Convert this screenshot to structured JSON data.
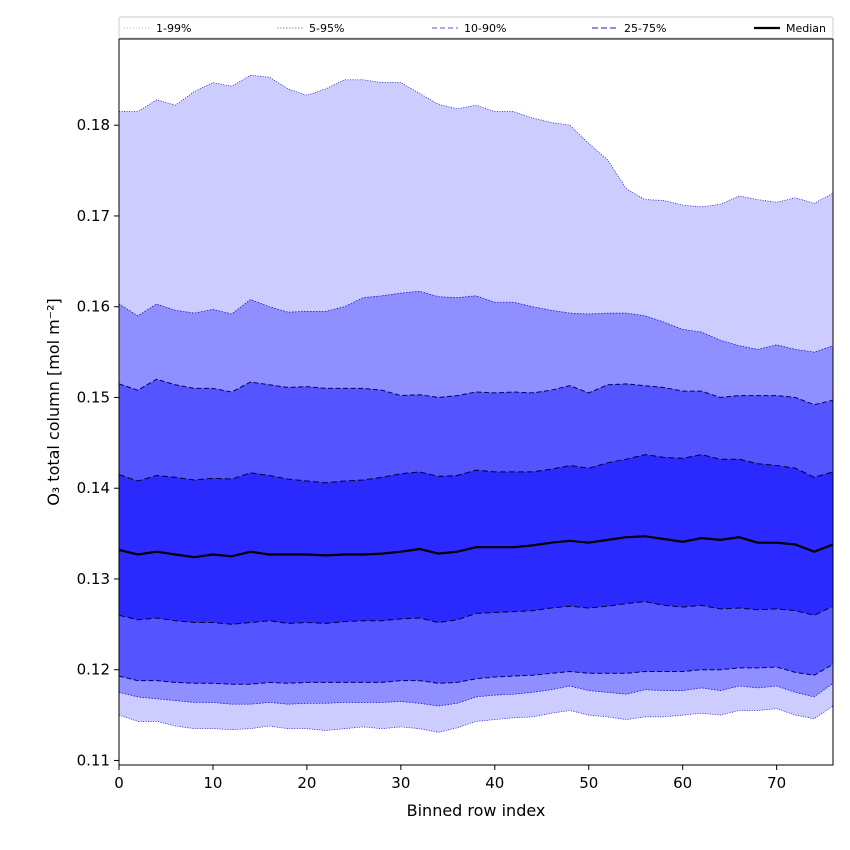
{
  "chart_data": {
    "type": "area",
    "xlabel": "Binned row index",
    "ylabel": "O₃ total column [mol m⁻²]",
    "xlim": [
      0,
      76
    ],
    "ylim": [
      0.1095,
      0.1895
    ],
    "xticks": [
      0,
      10,
      20,
      30,
      40,
      50,
      60,
      70
    ],
    "yticks": [
      0.11,
      0.12,
      0.13,
      0.14,
      0.15,
      0.16,
      0.17,
      0.18
    ],
    "legend_position": "top (outside, full width)",
    "x": [
      0,
      2,
      4,
      6,
      8,
      10,
      12,
      14,
      16,
      18,
      20,
      22,
      24,
      26,
      28,
      30,
      32,
      34,
      36,
      38,
      40,
      42,
      44,
      46,
      48,
      50,
      52,
      54,
      56,
      58,
      60,
      62,
      64,
      66,
      68,
      70,
      72,
      74,
      76
    ],
    "series": [
      {
        "name": "p1",
        "values": [
          0.115,
          0.1143,
          0.1143,
          0.1138,
          0.1135,
          0.1135,
          0.1134,
          0.1135,
          0.1138,
          0.1135,
          0.1135,
          0.1133,
          0.1135,
          0.1137,
          0.1135,
          0.1137,
          0.1135,
          0.1131,
          0.1136,
          0.1143,
          0.1145,
          0.1147,
          0.1148,
          0.1152,
          0.1155,
          0.115,
          0.1148,
          0.1145,
          0.1148,
          0.1148,
          0.115,
          0.1152,
          0.115,
          0.1155,
          0.1155,
          0.1157,
          0.115,
          0.1146,
          0.116
        ]
      },
      {
        "name": "p5",
        "values": [
          0.1175,
          0.117,
          0.1168,
          0.1166,
          0.1164,
          0.1164,
          0.1162,
          0.1162,
          0.1164,
          0.1162,
          0.1163,
          0.1163,
          0.1164,
          0.1164,
          0.1164,
          0.1165,
          0.1163,
          0.116,
          0.1163,
          0.117,
          0.1172,
          0.1173,
          0.1175,
          0.1178,
          0.1182,
          0.1177,
          0.1175,
          0.1173,
          0.1178,
          0.1177,
          0.1177,
          0.118,
          0.1177,
          0.1182,
          0.118,
          0.1182,
          0.1175,
          0.117,
          0.1185
        ]
      },
      {
        "name": "p10",
        "values": [
          0.1193,
          0.1188,
          0.1188,
          0.1186,
          0.1185,
          0.1185,
          0.1184,
          0.1184,
          0.1186,
          0.1185,
          0.1186,
          0.1186,
          0.1186,
          0.1186,
          0.1186,
          0.1188,
          0.1188,
          0.1185,
          0.1186,
          0.119,
          0.1192,
          0.1193,
          0.1194,
          0.1196,
          0.1198,
          0.1196,
          0.1196,
          0.1196,
          0.1198,
          0.1198,
          0.1198,
          0.12,
          0.12,
          0.1202,
          0.1202,
          0.1203,
          0.1197,
          0.1194,
          0.1206
        ]
      },
      {
        "name": "p25",
        "values": [
          0.126,
          0.1255,
          0.1257,
          0.1254,
          0.1252,
          0.1252,
          0.125,
          0.1252,
          0.1254,
          0.1251,
          0.1252,
          0.1251,
          0.1253,
          0.1254,
          0.1254,
          0.1256,
          0.1257,
          0.1252,
          0.1255,
          0.1262,
          0.1263,
          0.1264,
          0.1265,
          0.1268,
          0.127,
          0.1268,
          0.127,
          0.1273,
          0.1275,
          0.1271,
          0.1269,
          0.1271,
          0.1267,
          0.1268,
          0.1266,
          0.1267,
          0.1265,
          0.126,
          0.127
        ]
      },
      {
        "name": "p50",
        "values": [
          0.1332,
          0.1327,
          0.133,
          0.1327,
          0.1324,
          0.1327,
          0.1325,
          0.133,
          0.1327,
          0.1327,
          0.1327,
          0.1326,
          0.1327,
          0.1327,
          0.1328,
          0.133,
          0.1333,
          0.1328,
          0.133,
          0.1335,
          0.1335,
          0.1335,
          0.1337,
          0.134,
          0.1342,
          0.134,
          0.1343,
          0.1346,
          0.1347,
          0.1344,
          0.1341,
          0.1345,
          0.1343,
          0.1346,
          0.134,
          0.134,
          0.1338,
          0.133,
          0.1338
        ]
      },
      {
        "name": "p75",
        "values": [
          0.1415,
          0.1408,
          0.1414,
          0.1412,
          0.1409,
          0.1411,
          0.141,
          0.1417,
          0.1414,
          0.141,
          0.1408,
          0.1406,
          0.1408,
          0.1409,
          0.1412,
          0.1416,
          0.1418,
          0.1413,
          0.1414,
          0.142,
          0.1418,
          0.1418,
          0.1418,
          0.1421,
          0.1425,
          0.1422,
          0.1428,
          0.1432,
          0.1437,
          0.1434,
          0.1433,
          0.1437,
          0.1432,
          0.1432,
          0.1427,
          0.1425,
          0.1422,
          0.1412,
          0.1418
        ]
      },
      {
        "name": "p90",
        "values": [
          0.1515,
          0.1508,
          0.152,
          0.1514,
          0.151,
          0.151,
          0.1506,
          0.1517,
          0.1514,
          0.1511,
          0.1512,
          0.151,
          0.151,
          0.151,
          0.1508,
          0.1502,
          0.1503,
          0.15,
          0.1502,
          0.1506,
          0.1505,
          0.1506,
          0.1505,
          0.1508,
          0.1513,
          0.1505,
          0.1514,
          0.1515,
          0.1513,
          0.1511,
          0.1507,
          0.1507,
          0.15,
          0.1502,
          0.1502,
          0.1502,
          0.15,
          0.1492,
          0.1497
        ]
      },
      {
        "name": "p95",
        "values": [
          0.1603,
          0.159,
          0.1603,
          0.1596,
          0.1593,
          0.1597,
          0.1592,
          0.1608,
          0.16,
          0.1594,
          0.1595,
          0.1595,
          0.16,
          0.161,
          0.1612,
          0.1615,
          0.1617,
          0.1611,
          0.161,
          0.1612,
          0.1605,
          0.1605,
          0.16,
          0.1596,
          0.1593,
          0.1592,
          0.1593,
          0.1593,
          0.159,
          0.1583,
          0.1575,
          0.1572,
          0.1563,
          0.1557,
          0.1553,
          0.1558,
          0.1553,
          0.155,
          0.1557
        ]
      },
      {
        "name": "p99",
        "values": [
          0.1815,
          0.1815,
          0.1828,
          0.1822,
          0.1837,
          0.1847,
          0.1843,
          0.1855,
          0.1853,
          0.184,
          0.1833,
          0.184,
          0.185,
          0.185,
          0.1847,
          0.1847,
          0.1835,
          0.1823,
          0.1818,
          0.1822,
          0.1815,
          0.1815,
          0.1808,
          0.1803,
          0.18,
          0.178,
          0.1762,
          0.173,
          0.1718,
          0.1717,
          0.1712,
          0.171,
          0.1713,
          0.1722,
          0.1718,
          0.1715,
          0.172,
          0.1714,
          0.1725
        ]
      }
    ],
    "bands": [
      {
        "label": "1-99%",
        "lower": "p1",
        "upper": "p99",
        "fill": "#ccccff",
        "edge": "#0000cc",
        "edge_dash": "1,1.5"
      },
      {
        "label": "5-95%",
        "lower": "p5",
        "upper": "p95",
        "fill": "#8f8fff",
        "edge": "#0000cc",
        "edge_dash": "1.5,1.5"
      },
      {
        "label": "10-90%",
        "lower": "p10",
        "upper": "p90",
        "fill": "#5555ff",
        "edge": "#000066",
        "edge_dash": "5,2.5"
      },
      {
        "label": "25-75%",
        "lower": "p25",
        "upper": "p75",
        "fill": "#2a2aff",
        "edge": "#000033",
        "edge_dash": "6,3"
      }
    ],
    "median": {
      "label": "Median",
      "series": "p50",
      "color": "#000000"
    }
  },
  "legend": {
    "items": [
      {
        "label": "1-99%",
        "color": "#c8c8e6",
        "dash": "1,2"
      },
      {
        "label": "5-95%",
        "color": "#9a9adc",
        "dash": "1.5,1.5"
      },
      {
        "label": "10-90%",
        "color": "#7b7be8",
        "dash": "5,3"
      },
      {
        "label": "25-75%",
        "color": "#4a4ad8",
        "dash": "6,3"
      },
      {
        "label": "Median",
        "color": "#000000",
        "dash": ""
      }
    ]
  }
}
